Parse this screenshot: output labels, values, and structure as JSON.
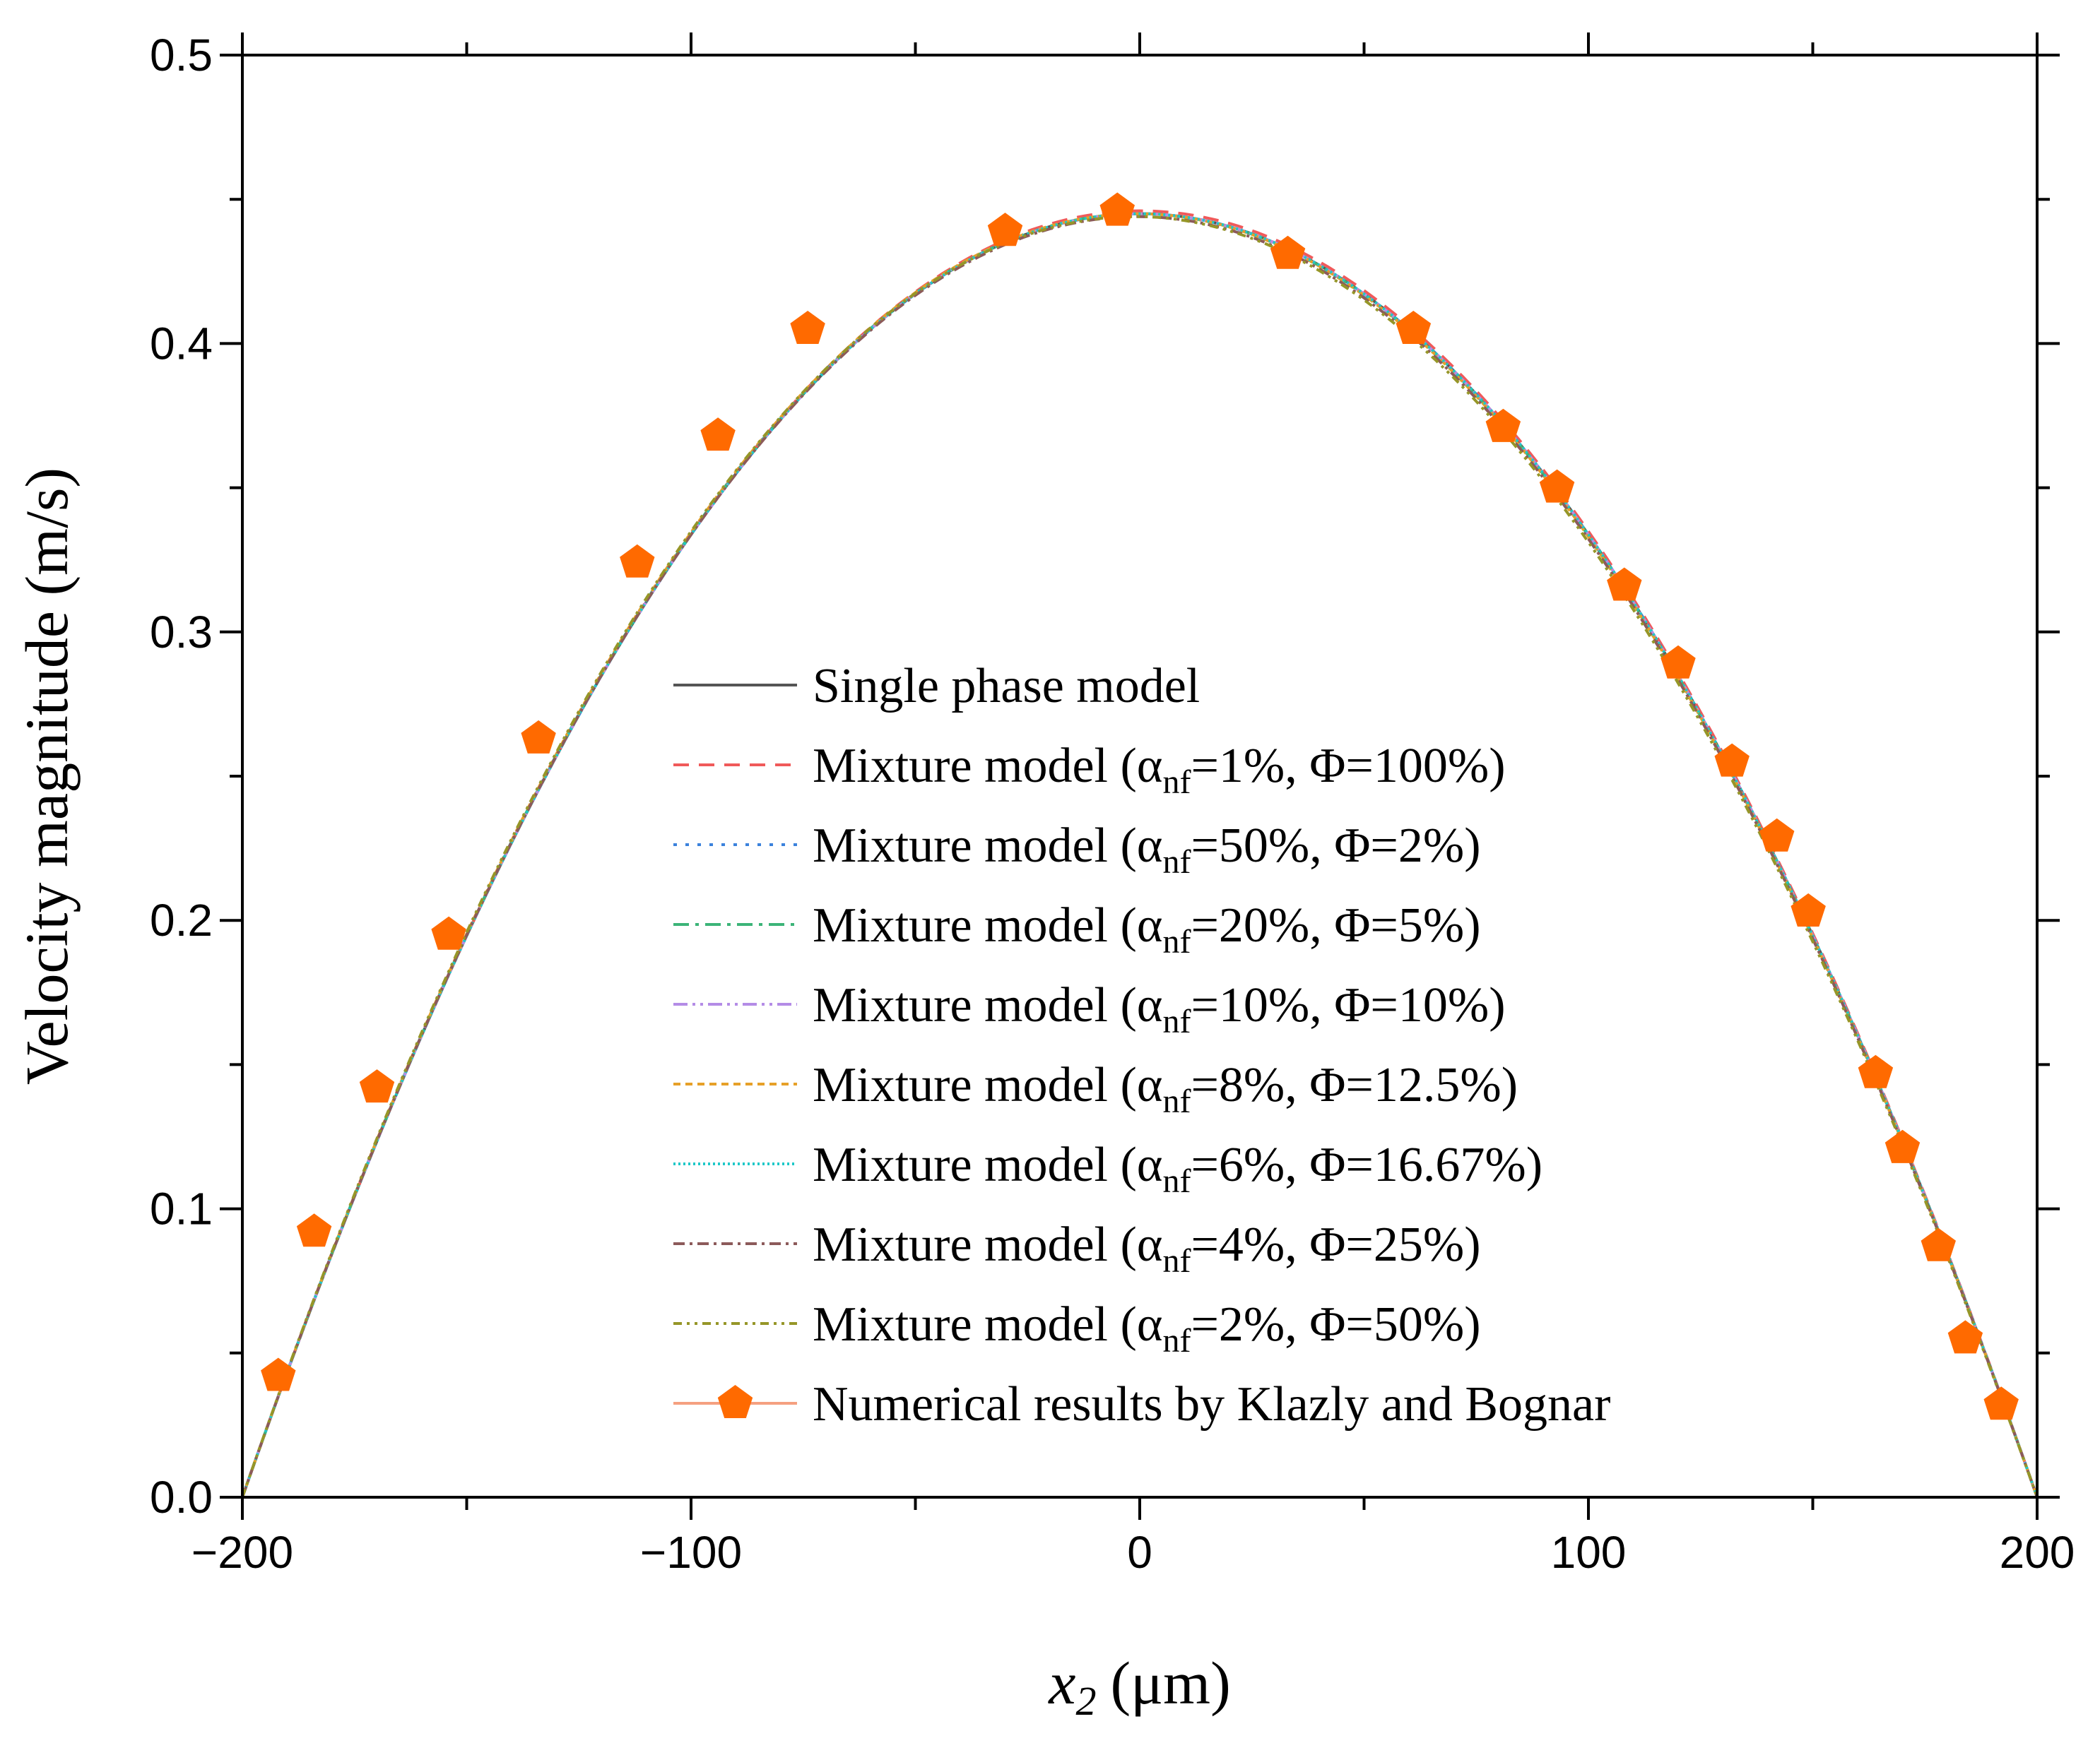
{
  "chart_data": {
    "type": "line",
    "title": "",
    "xlabel": {
      "var": "x",
      "sub": "2",
      "unit": "(μm)"
    },
    "ylabel": "Velocity magnitude (m/s)",
    "xlim": [
      -200,
      200
    ],
    "ylim": [
      0.0,
      0.5
    ],
    "xticks": [
      -200,
      -100,
      0,
      100,
      200
    ],
    "xtick_labels": [
      "−200",
      "−100",
      "0",
      "100",
      "200"
    ],
    "yticks": [
      0.0,
      0.1,
      0.2,
      0.3,
      0.4,
      0.5
    ],
    "ytick_labels": [
      "0.0",
      "0.1",
      "0.2",
      "0.3",
      "0.4",
      "0.5"
    ],
    "grid": false,
    "legend_position": "center-right",
    "series": [
      {
        "name": "Single phase model",
        "label": {
          "text": "Single phase model"
        },
        "color": "#555555",
        "dash": "",
        "peak": 0.445,
        "skew": 0.0
      },
      {
        "name": "Mixture model (α_nf=1%, Φ=100%)",
        "label": {
          "pre": "Mixture model (α",
          "sub": "nf",
          "post": "=1%, Φ=100%)"
        },
        "color": "#f05a5a",
        "dash": "22,14",
        "peak": 0.446,
        "skew": 0.001
      },
      {
        "name": "Mixture model (α_nf=50%, Φ=2%)",
        "label": {
          "pre": "Mixture model (α",
          "sub": "nf",
          "post": "=50%, Φ=2%)"
        },
        "color": "#3c82dc",
        "dash": "5,12",
        "peak": 0.445,
        "skew": 0.0
      },
      {
        "name": "Mixture model (α_nf=20%, Φ=5%)",
        "label": {
          "pre": "Mixture model (α",
          "sub": "nf",
          "post": "=20%, Φ=5%)"
        },
        "color": "#3cb478",
        "dash": "22,9,5,9",
        "peak": 0.445,
        "skew": -0.001
      },
      {
        "name": "Mixture model (α_nf=10%, Φ=10%)",
        "label": {
          "pre": "Mixture model (α",
          "sub": "nf",
          "post": "=10%, Φ=10%)"
        },
        "color": "#b48ce6",
        "dash": "20,7,4,7,4,7",
        "peak": 0.445,
        "skew": 0.0
      },
      {
        "name": "Mixture model (α_nf=8%, Φ=12.5%)",
        "label": {
          "pre": "Mixture model (α",
          "sub": "nf",
          "post": "=8%, Φ=12.5%)"
        },
        "color": "#e6a028",
        "dash": "10,7",
        "peak": 0.445,
        "skew": -0.002
      },
      {
        "name": "Mixture model (α_nf=6%, Φ=16.67%)",
        "label": {
          "pre": "Mixture model (α",
          "sub": "nf",
          "post": "=6%, Φ=16.67%)"
        },
        "color": "#1ec8c8",
        "dash": "3,4",
        "peak": 0.445,
        "skew": 0.0
      },
      {
        "name": "Mixture model (α_nf=4%, Φ=25%)",
        "label": {
          "pre": "Mixture model (α",
          "sub": "nf",
          "post": "=4%, Φ=25%)"
        },
        "color": "#8c5a5a",
        "dash": "16,7,4,7",
        "peak": 0.444,
        "skew": -0.002
      },
      {
        "name": "Mixture model (α_nf=2%, Φ=50%)",
        "label": {
          "pre": "Mixture model (α",
          "sub": "nf",
          "post": "=2%, Φ=50%)"
        },
        "color": "#969628",
        "dash": "12,7,4,7,4,7",
        "peak": 0.444,
        "skew": -0.005
      }
    ],
    "markers": {
      "name": "Numerical results by Klazly and Bognar",
      "label": {
        "text": "Numerical results by Klazly and Bognar"
      },
      "color": "#ff6a00",
      "line_color": "#f5a080",
      "shape": "pentagon",
      "x": [
        -192,
        -184,
        -170,
        -154,
        -134,
        -112,
        -94,
        -74,
        -30,
        -5,
        33,
        61,
        81,
        93,
        108,
        120,
        132,
        142,
        149,
        164,
        170,
        178,
        184,
        192
      ],
      "y": [
        0.042,
        0.092,
        0.142,
        0.195,
        0.263,
        0.324,
        0.368,
        0.405,
        0.439,
        0.446,
        0.431,
        0.405,
        0.371,
        0.35,
        0.316,
        0.289,
        0.255,
        0.229,
        0.203,
        0.147,
        0.121,
        0.087,
        0.055,
        0.032
      ]
    }
  }
}
